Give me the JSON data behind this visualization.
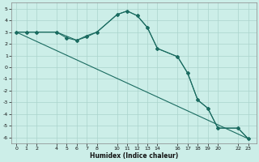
{
  "xlabel": "Humidex (Indice chaleur)",
  "background_color": "#cceee8",
  "grid_color": "#aad4cc",
  "line_color": "#1a6b60",
  "xlim": [
    -0.5,
    23.8
  ],
  "ylim": [
    -6.5,
    5.5
  ],
  "xticks": [
    0,
    1,
    2,
    4,
    5,
    6,
    7,
    8,
    10,
    11,
    12,
    13,
    14,
    16,
    17,
    18,
    19,
    20,
    22,
    23
  ],
  "yticks": [
    -6,
    -5,
    -4,
    -3,
    -2,
    -1,
    0,
    1,
    2,
    3,
    4,
    5
  ],
  "series_main": {
    "x": [
      0,
      1,
      2,
      4,
      5,
      6,
      7,
      8,
      10,
      11,
      12,
      13,
      14,
      16,
      17,
      18,
      19,
      20,
      22,
      23
    ],
    "y": [
      3,
      3,
      3,
      3,
      2.5,
      2.3,
      2.6,
      3,
      4.5,
      4.8,
      4.4,
      3.4,
      1.6,
      0.9,
      -0.5,
      -2.8,
      -3.5,
      -5.2,
      -5.2,
      -6.1
    ]
  },
  "series_smooth": {
    "x": [
      0,
      2,
      4,
      6,
      7,
      8,
      10,
      11,
      12,
      13,
      14,
      16,
      17,
      18,
      19,
      20,
      22,
      23
    ],
    "y": [
      3,
      3,
      3,
      2.3,
      2.7,
      3.0,
      4.5,
      4.8,
      4.4,
      3.4,
      1.6,
      0.9,
      -0.5,
      -2.8,
      -3.5,
      -5.2,
      -5.2,
      -6.1
    ]
  },
  "series_line": {
    "x": [
      0,
      23
    ],
    "y": [
      3,
      -6.1
    ]
  }
}
